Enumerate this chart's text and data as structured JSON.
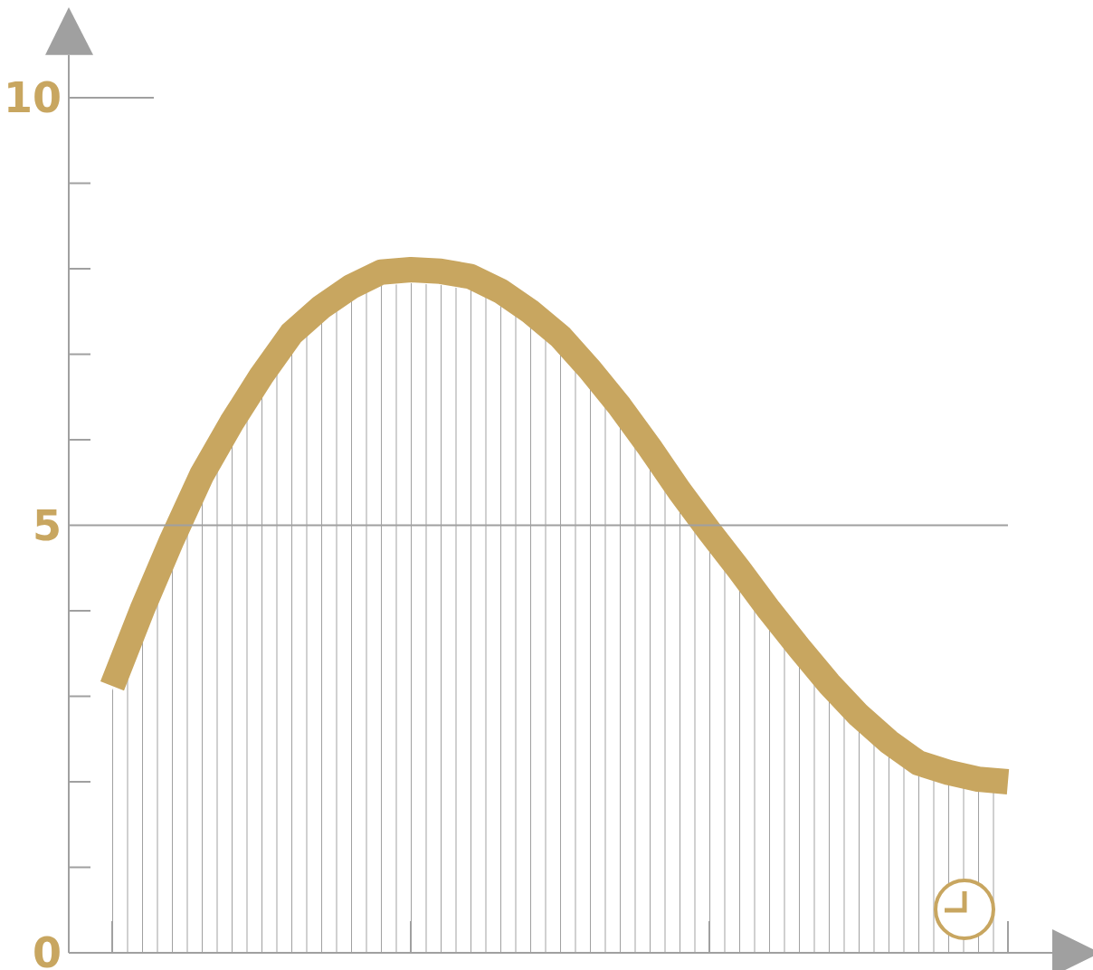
{
  "chart_data": {
    "type": "line",
    "categories": [
      null,
      null,
      null,
      null,
      null,
      null,
      null,
      null,
      null,
      null,
      null,
      null,
      null,
      null,
      null,
      null,
      null,
      null,
      null,
      null,
      null,
      null,
      null,
      null,
      null,
      null,
      null,
      null,
      null,
      null,
      null
    ],
    "series": [
      {
        "type": "area",
        "color": "#a0a0a0",
        "values": [
          3.07,
          3.89,
          4.66,
          5.43,
          6.04,
          6.59,
          7.08,
          7.39,
          7.63,
          7.8,
          7.83,
          7.81,
          7.75,
          7.58,
          7.34,
          7.05,
          6.66,
          6.23,
          5.75,
          5.24,
          4.77,
          4.32,
          3.85,
          3.41,
          3.07,
          2.71,
          2.41,
          2.17,
          2.08,
          2.02,
          2.0
        ]
      },
      {
        "color": "#c8a660",
        "values": [
          3.12,
          4.01,
          4.83,
          5.59,
          6.2,
          6.75,
          7.24,
          7.55,
          7.79,
          7.96,
          7.99,
          7.97,
          7.91,
          7.74,
          7.5,
          7.21,
          6.82,
          6.39,
          5.91,
          5.4,
          4.93,
          4.48,
          4.01,
          3.57,
          3.15,
          2.78,
          2.47,
          2.22,
          2.11,
          2.03,
          2.0
        ]
      }
    ],
    "ylim": [
      0,
      10.5
    ],
    "yticks": [
      0,
      5,
      10
    ],
    "grid": false,
    "ref_lines": [
      {
        "axis": "y",
        "value": 5,
        "color": "#a0a0a0"
      }
    ]
  }
}
